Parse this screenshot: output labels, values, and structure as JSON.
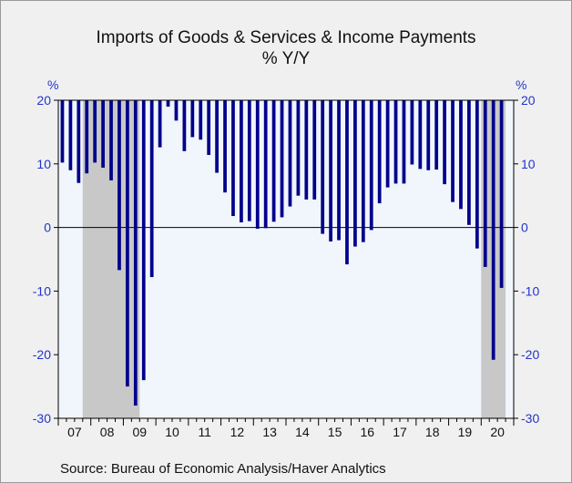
{
  "chart_data": {
    "type": "bar",
    "title": "Imports of Goods & Services & Income Payments",
    "subtitle": "% Y/Y",
    "unit_left": "%",
    "unit_right": "%",
    "source": "Source:  Bureau of Economic Analysis/Haver Analytics",
    "ylim": [
      -30,
      20
    ],
    "yticks": [
      20,
      10,
      0,
      -10,
      -20,
      -30
    ],
    "year_labels": [
      "07",
      "08",
      "09",
      "10",
      "11",
      "12",
      "13",
      "14",
      "15",
      "16",
      "17",
      "18",
      "19",
      "20"
    ],
    "recession_shading": [
      {
        "start": "2007Q4",
        "end": "2009Q2"
      },
      {
        "start": "2020Q1",
        "end": "2020Q3"
      }
    ],
    "bar_color": "#00008b",
    "x": [
      "2007Q1",
      "2007Q2",
      "2007Q3",
      "2007Q4",
      "2008Q1",
      "2008Q2",
      "2008Q3",
      "2008Q4",
      "2009Q1",
      "2009Q2",
      "2009Q3",
      "2009Q4",
      "2010Q1",
      "2010Q2",
      "2010Q3",
      "2010Q4",
      "2011Q1",
      "2011Q2",
      "2011Q3",
      "2011Q4",
      "2012Q1",
      "2012Q2",
      "2012Q3",
      "2012Q4",
      "2013Q1",
      "2013Q2",
      "2013Q3",
      "2013Q4",
      "2014Q1",
      "2014Q2",
      "2014Q3",
      "2014Q4",
      "2015Q1",
      "2015Q2",
      "2015Q3",
      "2015Q4",
      "2016Q1",
      "2016Q2",
      "2016Q3",
      "2016Q4",
      "2017Q1",
      "2017Q2",
      "2017Q3",
      "2017Q4",
      "2018Q1",
      "2018Q2",
      "2018Q3",
      "2018Q4",
      "2019Q1",
      "2019Q2",
      "2019Q3",
      "2019Q4",
      "2020Q1",
      "2020Q2",
      "2020Q3"
    ],
    "values": [
      10.2,
      9.0,
      7.0,
      8.5,
      10.2,
      9.4,
      7.4,
      -6.7,
      -25.0,
      -28.0,
      -24.0,
      -7.8,
      12.6,
      19.0,
      16.8,
      12.0,
      14.2,
      13.8,
      11.4,
      8.6,
      5.5,
      1.8,
      0.8,
      1.0,
      -0.2,
      -0.1,
      0.9,
      1.6,
      3.3,
      5.0,
      4.4,
      4.4,
      -1.0,
      -2.2,
      -2.0,
      -5.8,
      -3.0,
      -2.3,
      -0.4,
      3.8,
      6.3,
      6.9,
      6.9,
      9.9,
      9.2,
      9.0,
      9.1,
      6.8,
      4.0,
      2.9,
      0.4,
      -3.3,
      -6.2,
      -20.8,
      -9.5
    ]
  }
}
